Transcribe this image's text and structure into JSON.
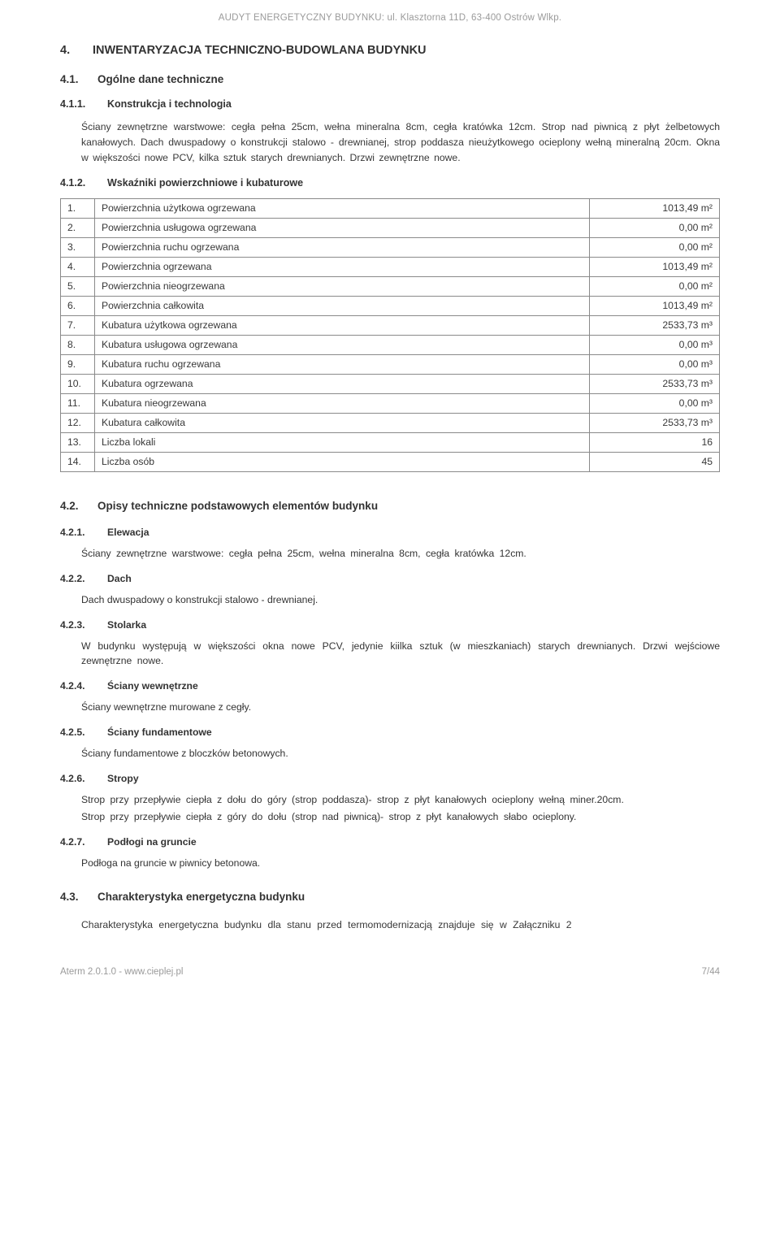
{
  "header": "AUDYT ENERGETYCZNY BUDYNKU: ul. Klasztorna 11D, 63-400 Ostrów Wlkp.",
  "s4": {
    "num": "4.",
    "title": "INWENTARYZACJA TECHNICZNO-BUDOWLANA BUDYNKU"
  },
  "s41": {
    "num": "4.1.",
    "title": "Ogólne dane techniczne"
  },
  "s411": {
    "num": "4.1.1.",
    "title": "Konstrukcja i technologia",
    "text": "Ściany zewnętrzne warstwowe: cegła pełna 25cm, wełna mineralna 8cm, cegła kratówka 12cm. Strop nad piwnicą z płyt żelbetowych kanałowych. Dach dwuspadowy o konstrukcji stalowo - drewnianej, strop poddasza nieużytkowego ocieplony wełną mineralną 20cm. Okna w większości nowe PCV, kilka sztuk starych drewnianych. Drzwi zewnętrzne nowe."
  },
  "s412": {
    "num": "4.1.2.",
    "title": "Wskaźniki powierzchniowe i kubaturowe"
  },
  "table": {
    "rows": [
      {
        "idx": "1.",
        "label": "Powierzchnia użytkowa ogrzewana",
        "val": "1013,49 m²"
      },
      {
        "idx": "2.",
        "label": "Powierzchnia usługowa ogrzewana",
        "val": "0,00 m²"
      },
      {
        "idx": "3.",
        "label": "Powierzchnia ruchu ogrzewana",
        "val": "0,00 m²"
      },
      {
        "idx": "4.",
        "label": "Powierzchnia ogrzewana",
        "val": "1013,49 m²"
      },
      {
        "idx": "5.",
        "label": "Powierzchnia nieogrzewana",
        "val": "0,00 m²"
      },
      {
        "idx": "6.",
        "label": "Powierzchnia całkowita",
        "val": "1013,49 m²"
      },
      {
        "idx": "7.",
        "label": "Kubatura użytkowa ogrzewana",
        "val": "2533,73 m³"
      },
      {
        "idx": "8.",
        "label": "Kubatura usługowa ogrzewana",
        "val": "0,00 m³"
      },
      {
        "idx": "9.",
        "label": "Kubatura ruchu ogrzewana",
        "val": "0,00 m³"
      },
      {
        "idx": "10.",
        "label": "Kubatura ogrzewana",
        "val": "2533,73 m³"
      },
      {
        "idx": "11.",
        "label": "Kubatura nieogrzewana",
        "val": "0,00 m³"
      },
      {
        "idx": "12.",
        "label": "Kubatura całkowita",
        "val": "2533,73 m³"
      },
      {
        "idx": "13.",
        "label": "Liczba lokali",
        "val": "16"
      },
      {
        "idx": "14.",
        "label": "Liczba osób",
        "val": "45"
      }
    ]
  },
  "s42": {
    "num": "4.2.",
    "title": "Opisy techniczne podstawowych elementów budynku"
  },
  "subs": [
    {
      "num": "4.2.1.",
      "title": "Elewacja",
      "text": "Ściany zewnętrzne warstwowe: cegła pełna 25cm, wełna mineralna 8cm, cegła kratówka 12cm."
    },
    {
      "num": "4.2.2.",
      "title": "Dach",
      "text": "Dach dwuspadowy o konstrukcji stalowo - drewnianej."
    },
    {
      "num": "4.2.3.",
      "title": "Stolarka",
      "text": "W budynku występują w większości okna nowe PCV, jedynie kiilka sztuk (w mieszkaniach) starych drewnianych. Drzwi wejściowe zewnętrzne nowe."
    },
    {
      "num": "4.2.4.",
      "title": "Ściany wewnętrzne",
      "text": "Ściany wewnętrzne murowane z cegły."
    },
    {
      "num": "4.2.5.",
      "title": "Ściany fundamentowe",
      "text": "Ściany fundamentowe z bloczków betonowych."
    },
    {
      "num": "4.2.6.",
      "title": "Stropy",
      "text": "Strop przy przepływie ciepła z dołu do góry (strop poddasza)- strop z płyt kanałowych ocieplony wełną miner.20cm.\nStrop przy przepływie ciepła z góry do dołu (strop nad piwnicą)- strop z płyt kanałowych słabo ocieplony."
    },
    {
      "num": "4.2.7.",
      "title": "Podłogi na gruncie",
      "text": "Podłoga na gruncie w piwnicy betonowa."
    }
  ],
  "s43": {
    "num": "4.3.",
    "title": "Charakterystyka energetyczna budynku",
    "text": "Charakterystyka energetyczna budynku dla stanu przed termomodernizacją znajduje się w Załączniku 2"
  },
  "footer": {
    "left": "Aterm 2.0.1.0 - www.cieplej.pl",
    "right": "7/44"
  }
}
